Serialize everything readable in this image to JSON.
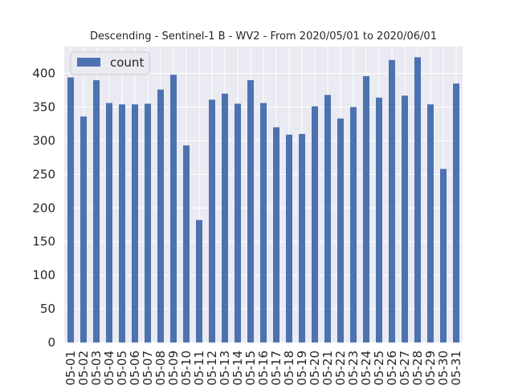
{
  "chart_data": {
    "type": "bar",
    "title": "Descending - Sentinel-1 B - WV2 - From 2020/05/01 to 2020/06/01",
    "xlabel": "",
    "ylabel": "",
    "ylim": [
      0,
      440
    ],
    "yticks": [
      0,
      50,
      100,
      150,
      200,
      250,
      300,
      350,
      400
    ],
    "grid": true,
    "legend": "top-left",
    "categories": [
      "05-01",
      "05-02",
      "05-03",
      "05-04",
      "05-05",
      "05-06",
      "05-07",
      "05-08",
      "05-09",
      "05-10",
      "05-11",
      "05-12",
      "05-13",
      "05-14",
      "05-15",
      "05-16",
      "05-17",
      "05-18",
      "05-19",
      "05-20",
      "05-21",
      "05-22",
      "05-23",
      "05-24",
      "05-25",
      "05-26",
      "05-27",
      "05-28",
      "05-29",
      "05-30",
      "05-31"
    ],
    "series": [
      {
        "name": "count",
        "color": "#4c72b0",
        "values": [
          394,
          336,
          390,
          356,
          354,
          354,
          355,
          376,
          398,
          293,
          182,
          361,
          370,
          355,
          390,
          356,
          320,
          309,
          310,
          351,
          368,
          333,
          350,
          396,
          364,
          420,
          367,
          424,
          354,
          258,
          385
        ]
      }
    ]
  }
}
